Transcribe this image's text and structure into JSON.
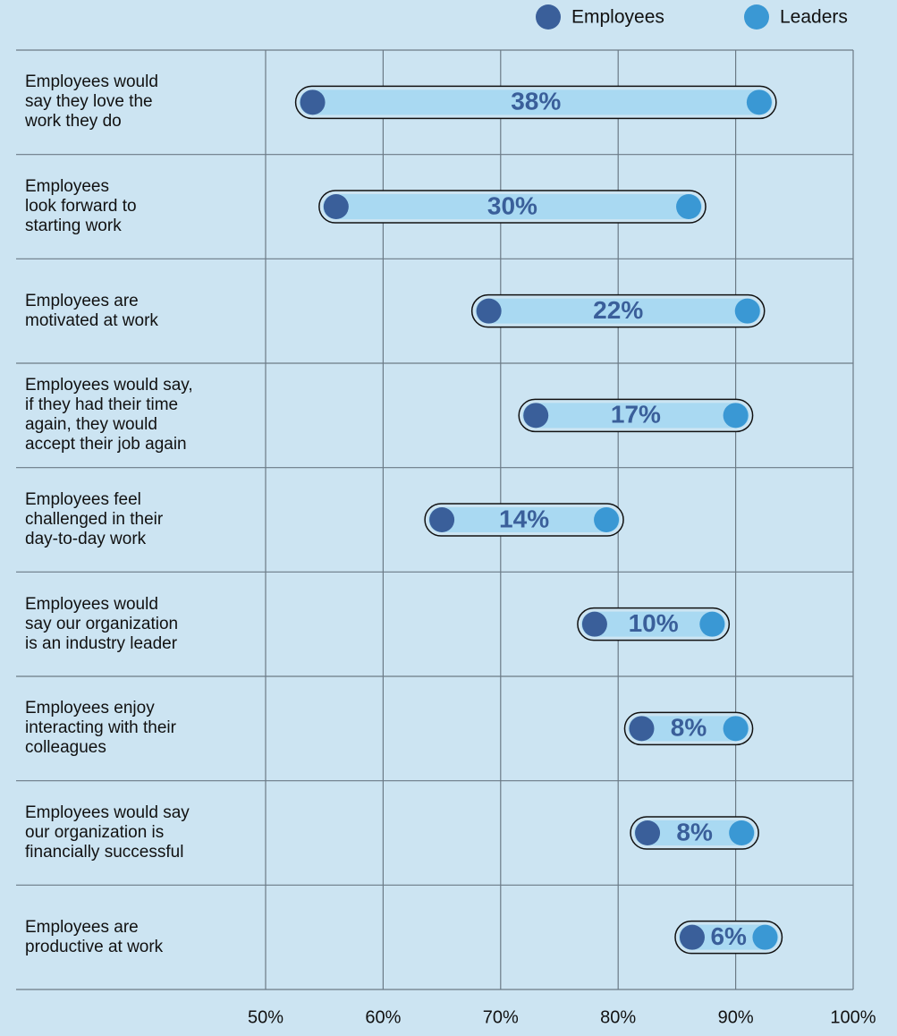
{
  "chart_data": {
    "type": "dumbbell",
    "categories": [
      "Employees would\nsay they love the\nwork they do",
      "Employees\nlook forward to\nstarting work",
      "Employees are\nmotivated at work",
      "Employees would say,\nif they had their time\nagain, they would\naccept their job again",
      "Employees feel\nchallenged in their\nday-to-day work",
      "Employees would\nsay our organization\nis an industry leader",
      "Employees enjoy\ninteracting with their\ncolleagues",
      "Employees would say\nour organization is\nfinancially successful",
      "Employees are\nproductive at work"
    ],
    "series": [
      {
        "name": "Employees",
        "color": "#3a5f9a",
        "values": [
          54,
          56,
          69,
          73,
          65,
          78,
          82,
          82.5,
          86.3
        ]
      },
      {
        "name": "Leaders",
        "color": "#3a98d4",
        "values": [
          92,
          86,
          91,
          90,
          79,
          88,
          90,
          90.5,
          92.5
        ]
      }
    ],
    "gaps": {
      "values": [
        38,
        30,
        22,
        17,
        14,
        10,
        8,
        8,
        6
      ],
      "value_labels": [
        "38%",
        "30%",
        "22%",
        "17%",
        "14%",
        "10%",
        "8%",
        "8%",
        "6%"
      ]
    },
    "xlim": [
      50,
      100
    ],
    "xticks": [
      {
        "value": 50,
        "label": "50%"
      },
      {
        "value": 60,
        "label": "60%"
      },
      {
        "value": 70,
        "label": "70%"
      },
      {
        "value": 80,
        "label": "80%"
      },
      {
        "value": 90,
        "label": "90%"
      },
      {
        "value": 100,
        "label": "100%"
      }
    ],
    "grid": true,
    "legend": "top-right"
  }
}
